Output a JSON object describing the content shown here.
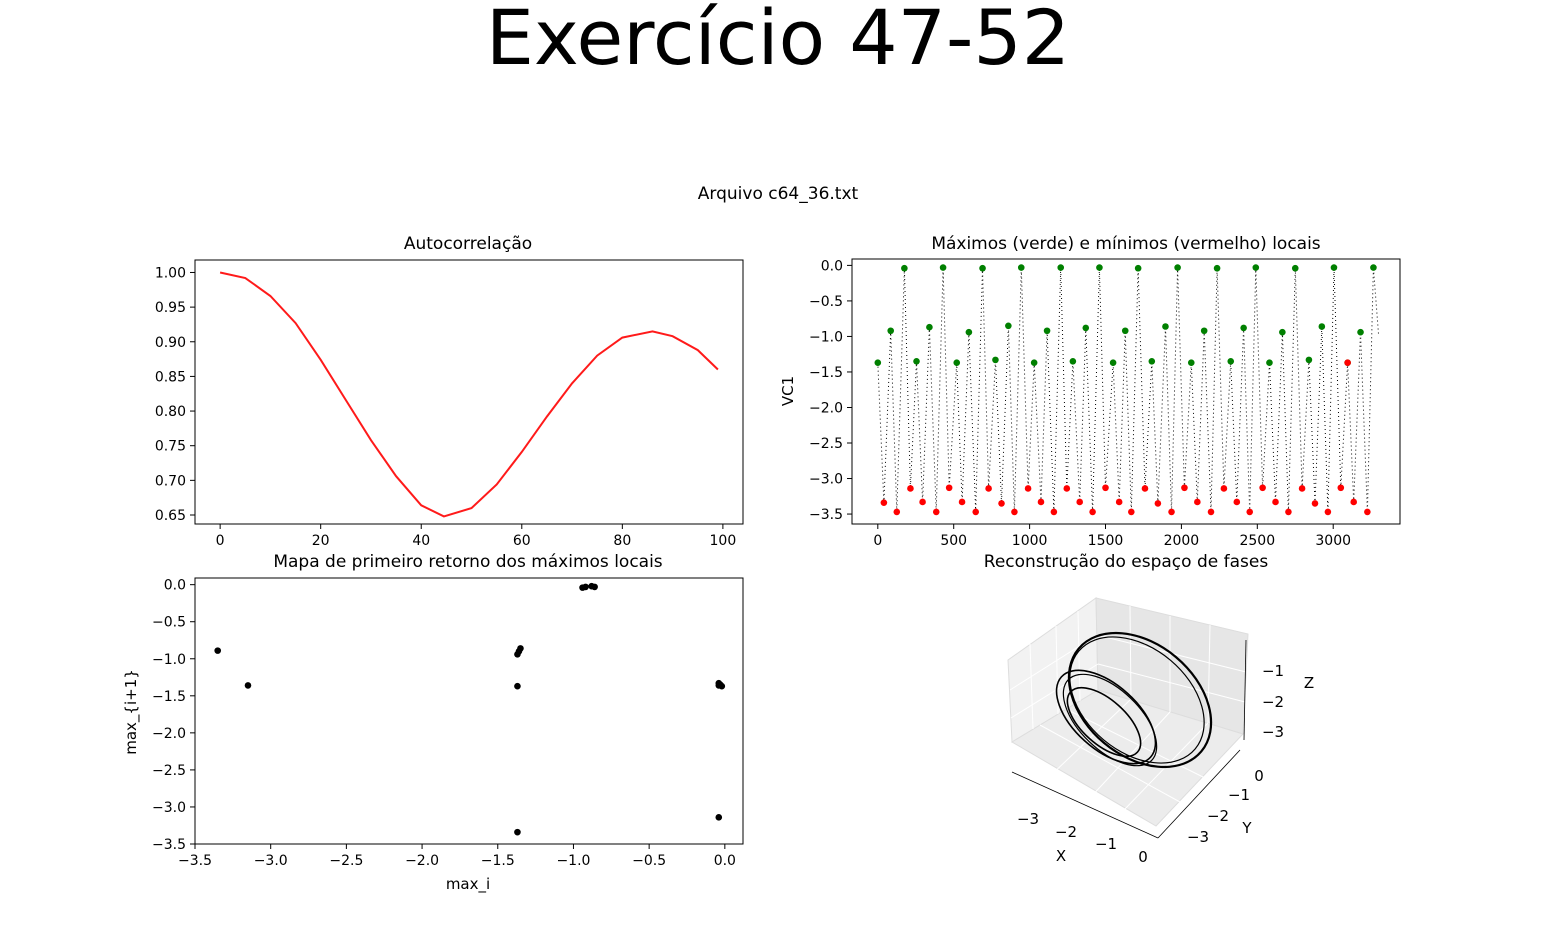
{
  "page_title": "Exercício 47-52",
  "figure_title": "Arquivo c64_36.txt",
  "colors": {
    "autocorr_line": "#ff1a1a",
    "maxima": "#008000",
    "minima": "#ff0000",
    "signal": "#000000",
    "scatter": "#000000"
  },
  "chart_data": [
    {
      "type": "line",
      "title": "Autocorrelação",
      "xlabel": "",
      "ylabel": "",
      "xlim": [
        -5,
        104
      ],
      "ylim": [
        0.637,
        1.018
      ],
      "xticks": [
        "0",
        "20",
        "40",
        "60",
        "80",
        "100"
      ],
      "yticks": [
        "0.65",
        "0.70",
        "0.75",
        "0.80",
        "0.85",
        "0.90",
        "0.95",
        "1.00"
      ],
      "grid": false,
      "series": [
        {
          "x": [
            0,
            5,
            10,
            15,
            20,
            25,
            30,
            35,
            40,
            44.5,
            50,
            55,
            60,
            65,
            70,
            75,
            80,
            86,
            90,
            95,
            99
          ],
          "values": [
            1.0,
            0.992,
            0.966,
            0.927,
            0.874,
            0.816,
            0.758,
            0.706,
            0.664,
            0.648,
            0.66,
            0.694,
            0.741,
            0.792,
            0.84,
            0.88,
            0.906,
            0.915,
            0.908,
            0.888,
            0.86
          ]
        }
      ]
    },
    {
      "type": "scatter",
      "title": "Máximos (verde) e mínimos (vermelho) locais",
      "xlabel": "",
      "ylabel": "VC1",
      "xlim": [
        -170,
        3440
      ],
      "ylim": [
        -3.64,
        0.09
      ],
      "xticks": [
        "0",
        "500",
        "1000",
        "1500",
        "2000",
        "2500",
        "3000"
      ],
      "yticks": [
        "0.0",
        "−0.5",
        "−1.0",
        "−1.5",
        "−2.0",
        "−2.5",
        "−3.0",
        "−3.5"
      ],
      "grid": false,
      "series": [
        {
          "name": "máximos",
          "color": "green",
          "x": [
            0,
            85,
            175,
            255,
            340,
            430,
            520,
            600,
            690,
            775,
            860,
            945,
            1030,
            1115,
            1205,
            1285,
            1370,
            1460,
            1550,
            1630,
            1715,
            1805,
            1895,
            1975,
            2065,
            2150,
            2235,
            2325,
            2410,
            2490,
            2580,
            2665,
            2750,
            2840,
            2925,
            3005,
            3095,
            3180,
            3265
          ],
          "values": [
            -1.37,
            -0.92,
            -0.04,
            -1.35,
            -0.87,
            -0.03,
            -1.37,
            -0.94,
            -0.04,
            -1.33,
            -0.85,
            -0.03,
            -1.37,
            -0.92,
            -0.03,
            -1.35,
            -0.88,
            -0.03,
            -1.37,
            -0.92,
            -0.04,
            -1.35,
            -0.86,
            -0.03,
            -1.37,
            -0.92,
            -0.04,
            -1.35,
            -0.88,
            -0.03,
            -1.37,
            -0.94,
            -0.04,
            -1.33,
            -0.86,
            -0.03,
            -1.37,
            -0.94,
            -0.03
          ]
        },
        {
          "name": "mínimos",
          "color": "red",
          "x": [
            40,
            125,
            215,
            295,
            385,
            470,
            555,
            645,
            730,
            815,
            900,
            990,
            1075,
            1160,
            1245,
            1330,
            1415,
            1500,
            1590,
            1670,
            1760,
            1845,
            1935,
            2020,
            2105,
            2195,
            2280,
            2365,
            2450,
            2535,
            2620,
            2705,
            2795,
            2880,
            2965,
            3050,
            3095,
            3135,
            3225
          ],
          "values": [
            -3.34,
            -3.47,
            -3.14,
            -3.33,
            -3.47,
            -3.13,
            -3.33,
            -3.47,
            -3.14,
            -3.35,
            -3.47,
            -3.14,
            -3.33,
            -3.47,
            -3.14,
            -3.33,
            -3.47,
            -3.13,
            -3.33,
            -3.47,
            -3.14,
            -3.35,
            -3.47,
            -3.13,
            -3.33,
            -3.47,
            -3.14,
            -3.33,
            -3.47,
            -3.13,
            -3.33,
            -3.47,
            -3.14,
            -3.35,
            -3.47,
            -3.13,
            -1.37,
            -3.33,
            -3.47
          ]
        }
      ]
    },
    {
      "type": "scatter",
      "title": "Mapa de primeiro retorno dos máximos locais",
      "xlabel": "max_i",
      "ylabel": "max_{i+1}",
      "xlim": [
        -3.5,
        0.12
      ],
      "ylim": [
        -3.5,
        0.09
      ],
      "xticks": [
        "−3.5",
        "−3.0",
        "−2.5",
        "−2.0",
        "−1.5",
        "−1.0",
        "−0.5",
        "0.0"
      ],
      "yticks": [
        "0.0",
        "−0.5",
        "−1.0",
        "−1.5",
        "−2.0",
        "−2.5",
        "−3.0",
        "−3.5"
      ],
      "grid": false,
      "series": [
        {
          "x": [
            -3.35,
            -3.15,
            -1.37,
            -1.36,
            -1.37,
            -1.35,
            -1.37,
            -0.94,
            -0.92,
            -0.88,
            -0.86,
            -0.04,
            -0.03,
            -0.04,
            -0.02,
            -0.04
          ],
          "values": [
            -0.89,
            -1.36,
            -0.94,
            -0.9,
            -1.37,
            -0.86,
            -3.34,
            -0.04,
            -0.03,
            -0.02,
            -0.03,
            -1.33,
            -1.35,
            -1.36,
            -1.37,
            -3.14
          ]
        }
      ]
    },
    {
      "type": "line",
      "title": "Reconstrução do espaço de fases",
      "xlabel": "X",
      "ylabel": "Y",
      "zlabel": "Z",
      "xticks": [
        "−3",
        "−2",
        "−1",
        "0"
      ],
      "yticks": [
        "0",
        "−1",
        "−2",
        "−3"
      ],
      "zticks": [
        "−1",
        "−2",
        "−3"
      ],
      "grid": true,
      "series": []
    }
  ]
}
